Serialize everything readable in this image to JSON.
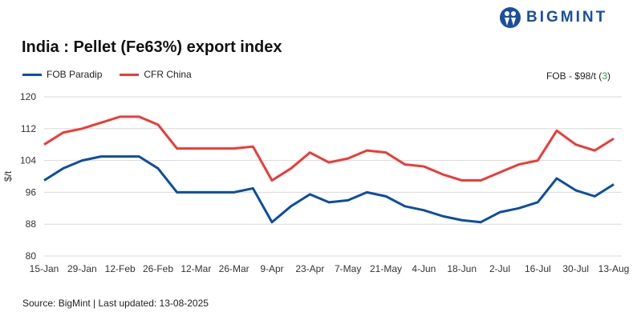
{
  "logo_text": "BIGMINT",
  "chart_data": {
    "type": "line",
    "title": "India : Pellet (Fe63%) export index",
    "ylabel": "$/t",
    "xlabel": "",
    "ylim": [
      80,
      120
    ],
    "yticks": [
      80,
      88,
      96,
      104,
      112,
      120
    ],
    "x": [
      "15-Jan",
      "22-Jan",
      "29-Jan",
      "5-Feb",
      "12-Feb",
      "19-Feb",
      "26-Feb",
      "5-Mar",
      "12-Mar",
      "19-Mar",
      "26-Mar",
      "2-Apr",
      "9-Apr",
      "16-Apr",
      "23-Apr",
      "30-Apr",
      "7-May",
      "14-May",
      "21-May",
      "28-May",
      "4-Jun",
      "11-Jun",
      "18-Jun",
      "25-Jun",
      "2-Jul",
      "9-Jul",
      "16-Jul",
      "23-Jul",
      "30-Jul",
      "6-Aug",
      "13-Aug"
    ],
    "xtick_labels": [
      "15-Jan",
      "29-Jan",
      "12-Feb",
      "26-Feb",
      "12-Mar",
      "26-Mar",
      "9-Apr",
      "23-Apr",
      "7-May",
      "21-May",
      "4-Jun",
      "18-Jun",
      "2-Jul",
      "16-Jul",
      "30-Jul",
      "13-Aug"
    ],
    "grid": true,
    "legend_position": "top-left",
    "series": [
      {
        "name": "FOB Paradip",
        "color": "#0b4ea2",
        "values": [
          99,
          102,
          104,
          105,
          105,
          105,
          102,
          96,
          96,
          96,
          96,
          97,
          88.5,
          92.5,
          95.5,
          93.5,
          94,
          96,
          95,
          92.5,
          91.5,
          90,
          89,
          88.5,
          91,
          92,
          93.5,
          99.5,
          96.5,
          95,
          98
        ]
      },
      {
        "name": "CFR China",
        "color": "#ee3a36",
        "values": [
          108,
          111,
          112,
          113.5,
          115,
          115,
          113,
          107,
          107,
          107,
          107,
          107.5,
          99,
          102,
          106,
          103.5,
          104.5,
          106.5,
          106,
          103,
          102.5,
          100.5,
          99,
          99,
          101,
          103,
          104,
          111.5,
          108,
          106.5,
          109.5
        ]
      }
    ]
  },
  "note": {
    "prefix": "FOB - $98/t (",
    "change": "3",
    "suffix": ")"
  },
  "source": "Source: BigMint | Last updated: 13-08-2025"
}
